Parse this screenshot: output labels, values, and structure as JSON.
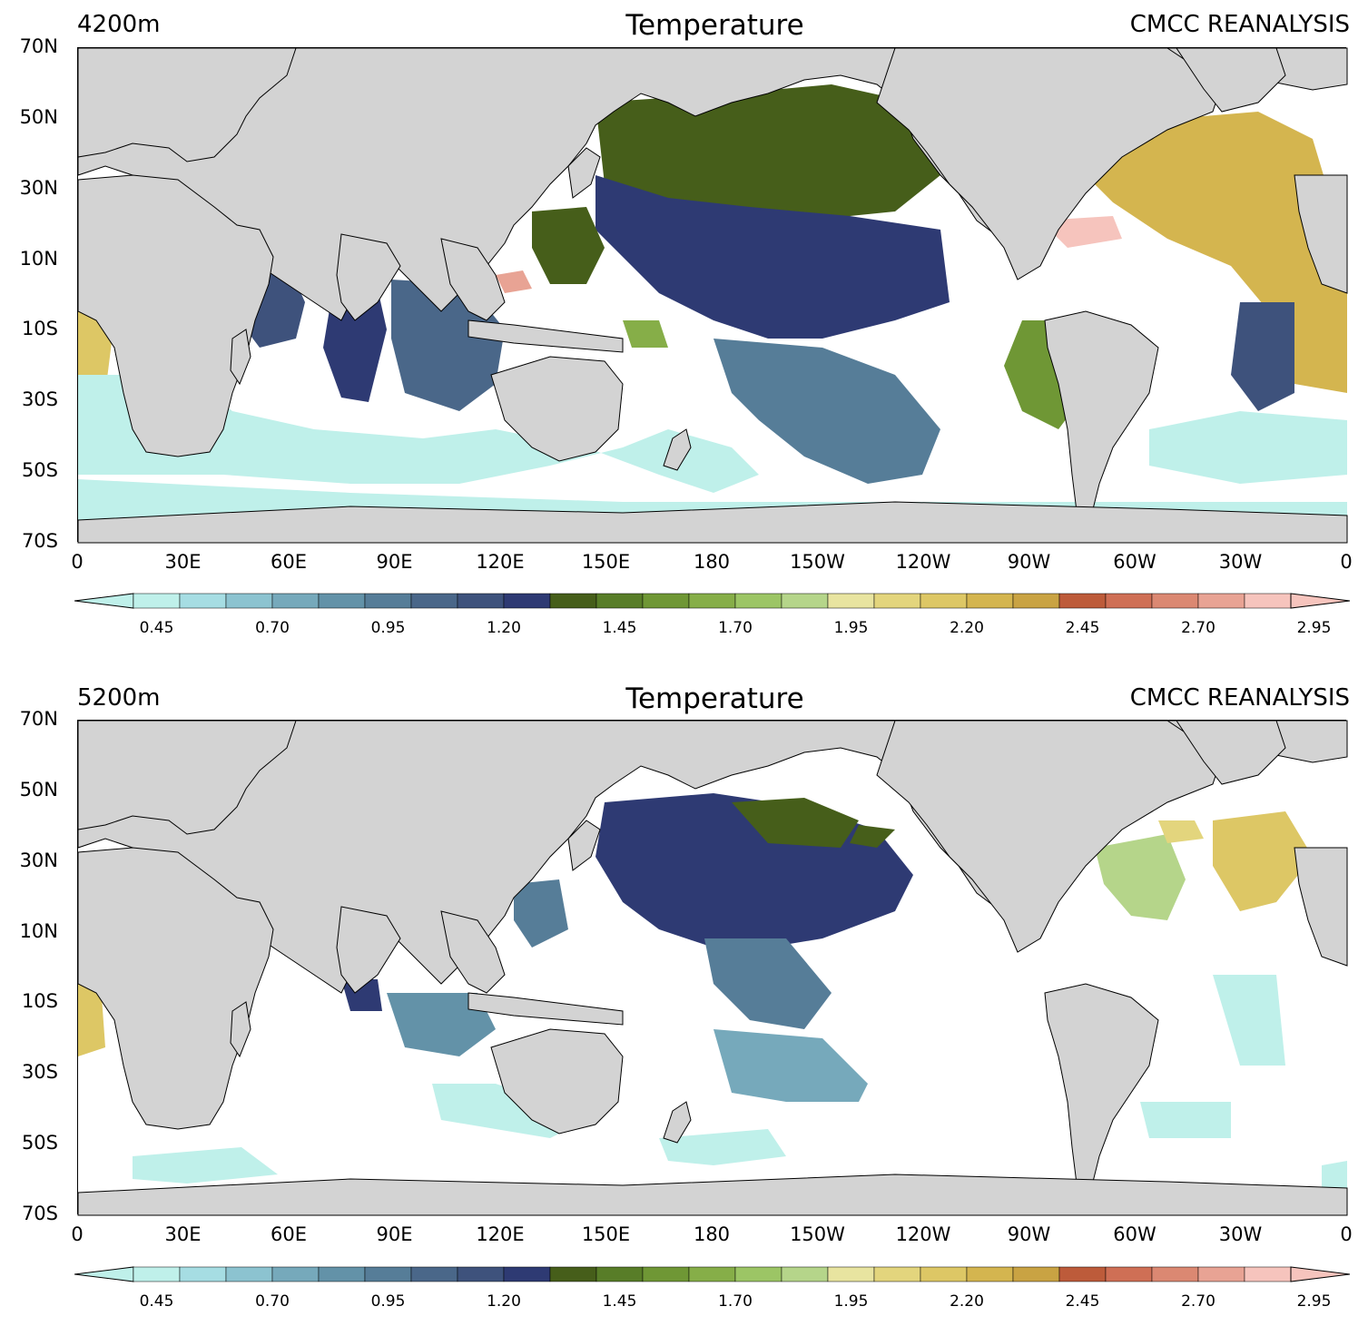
{
  "panels": [
    {
      "depth": "4200m",
      "title": "Temperature",
      "source": "CMCC REANALYSIS",
      "colorbar_labels": [
        "0.45",
        "0.70",
        "0.95",
        "1.20",
        "1.45",
        "1.70",
        "1.95",
        "2.20",
        "2.45",
        "2.70",
        "2.95"
      ]
    },
    {
      "depth": "5200m",
      "title": "Temperature",
      "source": "CMCC REANALYSIS",
      "colorbar_labels": [
        "0.45",
        "0.70",
        "0.95",
        "1.20",
        "1.45",
        "1.70",
        "1.95",
        "2.20",
        "2.45",
        "2.70",
        "2.95"
      ]
    }
  ],
  "lat_labels": [
    "70N",
    "50N",
    "30N",
    "10N",
    "10S",
    "30S",
    "50S",
    "70S"
  ],
  "lon_labels": [
    "0",
    "30E",
    "60E",
    "90E",
    "120E",
    "150E",
    "180",
    "150W",
    "120W",
    "90W",
    "60W",
    "30W",
    "0"
  ],
  "colors": {
    "land": "#d3d3d3",
    "coast": "#000000",
    "palette": [
      "#bff0ea",
      "#a6dde3",
      "#8cc3d0",
      "#76a9bb",
      "#6392a8",
      "#567d98",
      "#4a6789",
      "#3e527c",
      "#2e3a73",
      "#465e1a",
      "#587d28",
      "#6f9735",
      "#86ae48",
      "#9cc565",
      "#b5d58a",
      "#e8e4a0",
      "#e3d57d",
      "#ddc765",
      "#d4b54f",
      "#c9a343",
      "#bd5b3a",
      "#cf6f55",
      "#db8872",
      "#e8a394",
      "#f6c4bd"
    ]
  },
  "colorbar": {
    "min": 0.45,
    "max": 3.0,
    "step": 0.1,
    "extend": "both"
  }
}
